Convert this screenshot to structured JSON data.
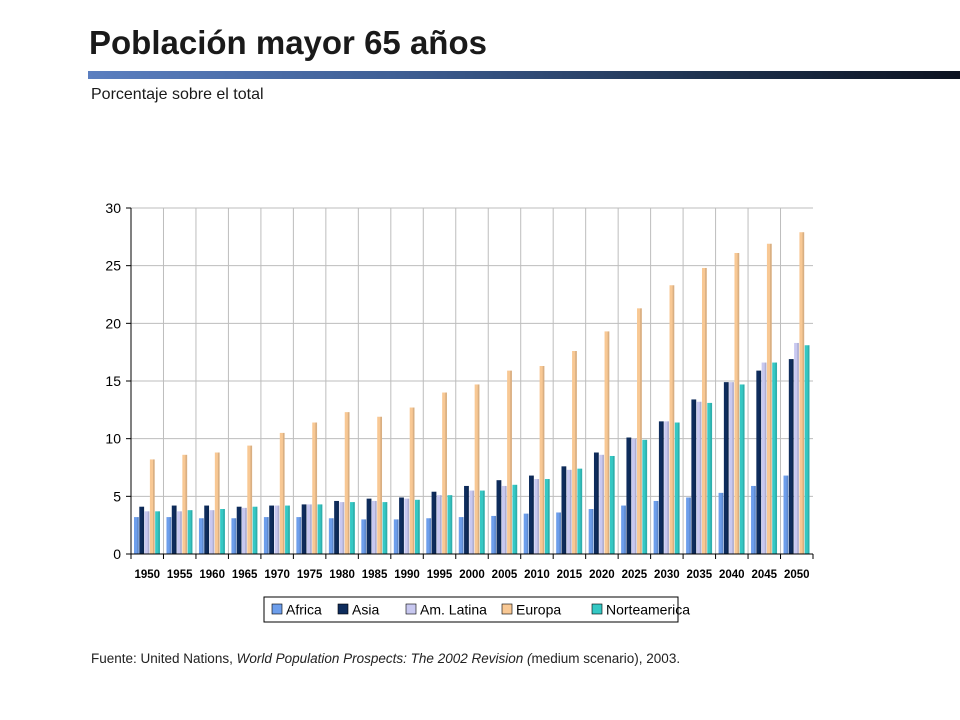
{
  "header": {
    "title": "Población mayor 65 años",
    "subtitle": "Porcentaje sobre el total"
  },
  "source": {
    "prefix": "Fuente: United Nations, ",
    "italic": "World Population Prospects: The 2002 Revision (",
    "suffix": "medium scenario), 2003."
  },
  "colors": {
    "Africa": "#6d9eeb",
    "Asia": "#0e2c5c",
    "Am. Latina": "#c8c8f0",
    "Europa": "#f8c894",
    "Norteamerica": "#35c8c4"
  },
  "chart_data": {
    "type": "bar",
    "ylim": [
      0,
      30
    ],
    "yticks": [
      0,
      5,
      10,
      15,
      20,
      25,
      30
    ],
    "grid": true,
    "legend": "bottom",
    "categories": [
      "1950",
      "1955",
      "1960",
      "1965",
      "1970",
      "1975",
      "1980",
      "1985",
      "1990",
      "1995",
      "2000",
      "2005",
      "2010",
      "2015",
      "2020",
      "2025",
      "2030",
      "2035",
      "2040",
      "2045",
      "2050"
    ],
    "series": [
      {
        "name": "Africa",
        "values": [
          3.2,
          3.2,
          3.1,
          3.1,
          3.2,
          3.2,
          3.1,
          3.0,
          3.0,
          3.1,
          3.2,
          3.3,
          3.5,
          3.6,
          3.9,
          4.2,
          4.6,
          4.9,
          5.3,
          5.9,
          6.8
        ]
      },
      {
        "name": "Asia",
        "values": [
          4.1,
          4.2,
          4.2,
          4.1,
          4.2,
          4.3,
          4.6,
          4.8,
          4.9,
          5.4,
          5.9,
          6.4,
          6.8,
          7.6,
          8.8,
          10.1,
          11.5,
          13.4,
          14.9,
          15.9,
          16.9
        ]
      },
      {
        "name": "Am. Latina",
        "values": [
          3.7,
          3.7,
          3.8,
          4.0,
          4.2,
          4.3,
          4.5,
          4.6,
          4.8,
          5.1,
          5.5,
          5.9,
          6.5,
          7.3,
          8.6,
          10.0,
          11.5,
          13.2,
          14.9,
          16.6,
          18.3
        ]
      },
      {
        "name": "Europa",
        "values": [
          8.2,
          8.6,
          8.8,
          9.4,
          10.5,
          11.4,
          12.3,
          11.9,
          12.7,
          14.0,
          14.7,
          15.9,
          16.3,
          17.6,
          19.3,
          21.3,
          23.3,
          24.8,
          26.1,
          26.9,
          27.9
        ]
      },
      {
        "name": "Norteamerica",
        "values": [
          3.7,
          3.8,
          3.9,
          4.1,
          4.2,
          4.3,
          4.5,
          4.5,
          4.7,
          5.1,
          5.5,
          6.0,
          6.5,
          7.4,
          8.5,
          9.9,
          11.4,
          13.1,
          14.7,
          16.6,
          18.1
        ]
      }
    ]
  }
}
